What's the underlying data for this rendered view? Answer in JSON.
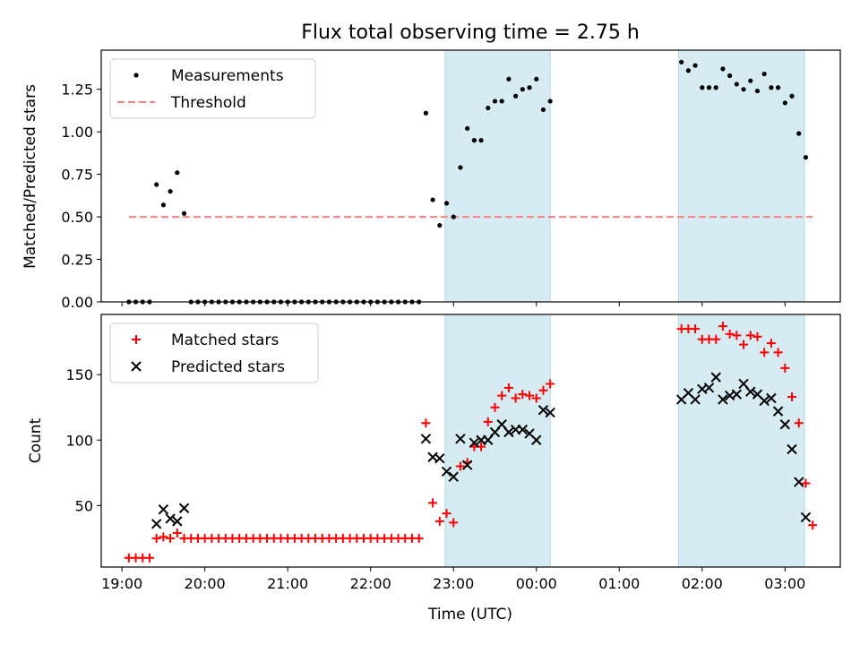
{
  "chart_data": [
    {
      "type": "scatter",
      "title": "Flux total observing time = 2.75 h",
      "xlabel": "",
      "ylabel": "Matched/Predicted stars",
      "ylim": [
        0,
        1.48
      ],
      "xlim": [
        "18:45",
        "03:40"
      ],
      "x_unit": "UTC time (continues past midnight)",
      "yticks": [
        "0.00",
        "0.25",
        "0.50",
        "0.75",
        "1.00",
        "1.25"
      ],
      "legend": {
        "position": "top-left",
        "entries": [
          "Measurements",
          "Threshold"
        ]
      },
      "threshold": {
        "name": "Threshold",
        "value": 0.5,
        "x_range": [
          "19:05",
          "03:20"
        ],
        "color": "#ff7f7f",
        "style": "dashed"
      },
      "shaded_spans": [
        [
          "22:54",
          "00:10"
        ],
        [
          "01:43",
          "03:14"
        ]
      ],
      "series": [
        {
          "name": "Measurements",
          "color": "#000000",
          "points": [
            [
              "19:05",
              0
            ],
            [
              "19:10",
              0
            ],
            [
              "19:15",
              0
            ],
            [
              "19:20",
              0
            ],
            [
              "19:25",
              0.69
            ],
            [
              "19:30",
              0.57
            ],
            [
              "19:35",
              0.65
            ],
            [
              "19:40",
              0.76
            ],
            [
              "19:45",
              0.52
            ],
            [
              "19:50",
              0
            ],
            [
              "19:55",
              0
            ],
            [
              "20:00",
              0
            ],
            [
              "20:05",
              0
            ],
            [
              "20:10",
              0
            ],
            [
              "20:15",
              0
            ],
            [
              "20:20",
              0
            ],
            [
              "20:25",
              0
            ],
            [
              "20:30",
              0
            ],
            [
              "20:35",
              0
            ],
            [
              "20:40",
              0
            ],
            [
              "20:45",
              0
            ],
            [
              "20:50",
              0
            ],
            [
              "20:55",
              0
            ],
            [
              "21:00",
              0
            ],
            [
              "21:05",
              0
            ],
            [
              "21:10",
              0
            ],
            [
              "21:15",
              0
            ],
            [
              "21:20",
              0
            ],
            [
              "21:25",
              0
            ],
            [
              "21:30",
              0
            ],
            [
              "21:35",
              0
            ],
            [
              "21:40",
              0
            ],
            [
              "21:45",
              0
            ],
            [
              "21:50",
              0
            ],
            [
              "21:55",
              0
            ],
            [
              "22:00",
              0
            ],
            [
              "22:05",
              0
            ],
            [
              "22:10",
              0
            ],
            [
              "22:15",
              0
            ],
            [
              "22:20",
              0
            ],
            [
              "22:25",
              0
            ],
            [
              "22:30",
              0
            ],
            [
              "22:35",
              0
            ],
            [
              "22:40",
              1.11
            ],
            [
              "22:45",
              0.6
            ],
            [
              "22:50",
              0.45
            ],
            [
              "22:55",
              0.58
            ],
            [
              "23:00",
              0.5
            ],
            [
              "23:05",
              0.79
            ],
            [
              "23:10",
              1.02
            ],
            [
              "23:15",
              0.95
            ],
            [
              "23:20",
              0.95
            ],
            [
              "23:25",
              1.14
            ],
            [
              "23:30",
              1.18
            ],
            [
              "23:35",
              1.18
            ],
            [
              "23:40",
              1.31
            ],
            [
              "23:45",
              1.21
            ],
            [
              "23:50",
              1.25
            ],
            [
              "23:55",
              1.26
            ],
            [
              "00:00",
              1.31
            ],
            [
              "00:05",
              1.13
            ],
            [
              "00:10",
              1.18
            ],
            [
              "01:45",
              1.41
            ],
            [
              "01:50",
              1.36
            ],
            [
              "01:55",
              1.39
            ],
            [
              "02:00",
              1.26
            ],
            [
              "02:05",
              1.26
            ],
            [
              "02:10",
              1.26
            ],
            [
              "02:15",
              1.37
            ],
            [
              "02:20",
              1.33
            ],
            [
              "02:25",
              1.28
            ],
            [
              "02:30",
              1.25
            ],
            [
              "02:35",
              1.3
            ],
            [
              "02:40",
              1.24
            ],
            [
              "02:45",
              1.34
            ],
            [
              "02:50",
              1.26
            ],
            [
              "02:55",
              1.26
            ],
            [
              "03:00",
              1.17
            ],
            [
              "03:05",
              1.21
            ],
            [
              "03:10",
              0.99
            ],
            [
              "03:15",
              0.85
            ]
          ]
        }
      ]
    },
    {
      "type": "scatter",
      "title": "",
      "xlabel": "Time (UTC)",
      "ylabel": "Count",
      "ylim": [
        3,
        196
      ],
      "xlim": [
        "18:45",
        "03:40"
      ],
      "x_unit": "UTC time (continues past midnight)",
      "xticks": [
        "19:00",
        "20:00",
        "21:00",
        "22:00",
        "23:00",
        "00:00",
        "01:00",
        "02:00",
        "03:00"
      ],
      "yticks": [
        "50",
        "100",
        "150"
      ],
      "legend": {
        "position": "top-left",
        "entries": [
          "Matched stars",
          "Predicted stars"
        ]
      },
      "shaded_spans": [
        [
          "22:54",
          "00:10"
        ],
        [
          "01:43",
          "03:14"
        ]
      ],
      "series": [
        {
          "name": "Matched stars",
          "marker": "+",
          "color": "#ff0000",
          "points": [
            [
              "19:05",
              10
            ],
            [
              "19:10",
              10
            ],
            [
              "19:15",
              10
            ],
            [
              "19:20",
              10
            ],
            [
              "19:25",
              25
            ],
            [
              "19:30",
              26
            ],
            [
              "19:35",
              25
            ],
            [
              "19:40",
              29
            ],
            [
              "19:45",
              25
            ],
            [
              "19:50",
              25
            ],
            [
              "19:55",
              25
            ],
            [
              "20:00",
              25
            ],
            [
              "20:05",
              25
            ],
            [
              "20:10",
              25
            ],
            [
              "20:15",
              25
            ],
            [
              "20:20",
              25
            ],
            [
              "20:25",
              25
            ],
            [
              "20:30",
              25
            ],
            [
              "20:35",
              25
            ],
            [
              "20:40",
              25
            ],
            [
              "20:45",
              25
            ],
            [
              "20:50",
              25
            ],
            [
              "20:55",
              25
            ],
            [
              "21:00",
              25
            ],
            [
              "21:05",
              25
            ],
            [
              "21:10",
              25
            ],
            [
              "21:15",
              25
            ],
            [
              "21:20",
              25
            ],
            [
              "21:25",
              25
            ],
            [
              "21:30",
              25
            ],
            [
              "21:35",
              25
            ],
            [
              "21:40",
              25
            ],
            [
              "21:45",
              25
            ],
            [
              "21:50",
              25
            ],
            [
              "21:55",
              25
            ],
            [
              "22:00",
              25
            ],
            [
              "22:05",
              25
            ],
            [
              "22:10",
              25
            ],
            [
              "22:15",
              25
            ],
            [
              "22:20",
              25
            ],
            [
              "22:25",
              25
            ],
            [
              "22:30",
              25
            ],
            [
              "22:35",
              25
            ],
            [
              "22:40",
              113
            ],
            [
              "22:45",
              52
            ],
            [
              "22:50",
              38
            ],
            [
              "22:55",
              44
            ],
            [
              "23:00",
              37
            ],
            [
              "23:05",
              80
            ],
            [
              "23:10",
              83
            ],
            [
              "23:15",
              95
            ],
            [
              "23:20",
              95
            ],
            [
              "23:25",
              114
            ],
            [
              "23:30",
              125
            ],
            [
              "23:35",
              134
            ],
            [
              "23:40",
              140
            ],
            [
              "23:45",
              132
            ],
            [
              "23:50",
              135
            ],
            [
              "23:55",
              134
            ],
            [
              "00:00",
              132
            ],
            [
              "00:05",
              138
            ],
            [
              "00:10",
              143
            ],
            [
              "01:45",
              185
            ],
            [
              "01:50",
              185
            ],
            [
              "01:55",
              185
            ],
            [
              "02:00",
              177
            ],
            [
              "02:05",
              177
            ],
            [
              "02:10",
              177
            ],
            [
              "02:15",
              187
            ],
            [
              "02:20",
              181
            ],
            [
              "02:25",
              180
            ],
            [
              "02:30",
              173
            ],
            [
              "02:35",
              180
            ],
            [
              "02:40",
              179
            ],
            [
              "02:45",
              167
            ],
            [
              "02:50",
              174
            ],
            [
              "02:55",
              167
            ],
            [
              "03:00",
              155
            ],
            [
              "03:05",
              133
            ],
            [
              "03:10",
              113
            ],
            [
              "03:15",
              67
            ],
            [
              "03:20",
              35
            ]
          ]
        },
        {
          "name": "Predicted stars",
          "marker": "x",
          "color": "#000000",
          "points": [
            [
              "19:25",
              36
            ],
            [
              "19:30",
              47
            ],
            [
              "19:35",
              40
            ],
            [
              "19:40",
              38
            ],
            [
              "19:45",
              48
            ],
            [
              "22:40",
              101
            ],
            [
              "22:45",
              87
            ],
            [
              "22:50",
              86
            ],
            [
              "22:55",
              76
            ],
            [
              "23:00",
              72
            ],
            [
              "23:05",
              101
            ],
            [
              "23:10",
              81
            ],
            [
              "23:15",
              98
            ],
            [
              "23:20",
              100
            ],
            [
              "23:25",
              100
            ],
            [
              "23:30",
              106
            ],
            [
              "23:35",
              112
            ],
            [
              "23:40",
              106
            ],
            [
              "23:45",
              108
            ],
            [
              "23:50",
              108
            ],
            [
              "23:55",
              105
            ],
            [
              "00:00",
              100
            ],
            [
              "00:05",
              123
            ],
            [
              "00:10",
              121
            ],
            [
              "01:45",
              131
            ],
            [
              "01:50",
              136
            ],
            [
              "01:55",
              131
            ],
            [
              "02:00",
              139
            ],
            [
              "02:05",
              140
            ],
            [
              "02:10",
              148
            ],
            [
              "02:15",
              131
            ],
            [
              "02:20",
              134
            ],
            [
              "02:25",
              135
            ],
            [
              "02:30",
              143
            ],
            [
              "02:35",
              137
            ],
            [
              "02:40",
              135
            ],
            [
              "02:45",
              130
            ],
            [
              "02:50",
              132
            ],
            [
              "02:55",
              122
            ],
            [
              "03:00",
              112
            ],
            [
              "03:05",
              93
            ],
            [
              "03:10",
              68
            ],
            [
              "03:15",
              41
            ]
          ]
        }
      ]
    }
  ]
}
